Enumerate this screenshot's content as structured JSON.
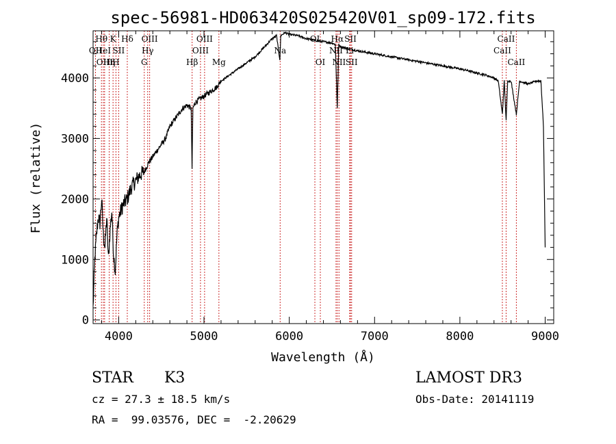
{
  "chart_data": {
    "type": "line",
    "title": "spec-56981-HD063420S025420V01_sp09-172.fits",
    "xlabel": "Wavelength (Å)",
    "ylabel": "Flux (relative)",
    "xlim": [
      3700,
      9100
    ],
    "ylim": [
      -60,
      4780
    ],
    "xticks": [
      4000,
      5000,
      6000,
      7000,
      8000,
      9000
    ],
    "yticks": [
      0,
      1000,
      2000,
      3000,
      4000
    ],
    "series": [
      {
        "name": "spectrum",
        "x": [
          3700,
          3720,
          3740,
          3760,
          3780,
          3800,
          3820,
          3840,
          3860,
          3880,
          3900,
          3920,
          3940,
          3960,
          3980,
          4000,
          4050,
          4100,
          4150,
          4200,
          4250,
          4300,
          4350,
          4400,
          4450,
          4500,
          4550,
          4600,
          4650,
          4700,
          4750,
          4800,
          4850,
          4860,
          4870,
          4900,
          4950,
          5000,
          5050,
          5100,
          5150,
          5200,
          5300,
          5400,
          5500,
          5600,
          5700,
          5800,
          5850,
          5890,
          5900,
          5950,
          6000,
          6100,
          6200,
          6300,
          6400,
          6500,
          6540,
          6563,
          6580,
          6600,
          6700,
          6800,
          7000,
          7200,
          7400,
          7600,
          7800,
          8000,
          8100,
          8200,
          8300,
          8400,
          8450,
          8498,
          8520,
          8542,
          8560,
          8600,
          8662,
          8700,
          8800,
          8900,
          8950,
          8980,
          9000
        ],
        "y": [
          200,
          1000,
          1400,
          1700,
          1600,
          2000,
          1400,
          1200,
          1700,
          1000,
          1500,
          1800,
          1100,
          800,
          1400,
          1700,
          1900,
          2000,
          2200,
          2300,
          2400,
          2450,
          2600,
          2700,
          2800,
          2900,
          3000,
          3200,
          3300,
          3400,
          3500,
          3550,
          3500,
          2500,
          3500,
          3600,
          3650,
          3700,
          3750,
          3800,
          3850,
          3950,
          4050,
          4150,
          4250,
          4350,
          4500,
          4650,
          4700,
          4300,
          4700,
          4750,
          4720,
          4700,
          4650,
          4620,
          4600,
          4580,
          4550,
          3500,
          4550,
          4520,
          4480,
          4450,
          4400,
          4350,
          4300,
          4250,
          4200,
          4150,
          4120,
          4080,
          4050,
          4000,
          3950,
          3400,
          3950,
          3300,
          3950,
          3950,
          3400,
          3950,
          3900,
          3950,
          3950,
          3200,
          1200
        ]
      }
    ],
    "spectral_lines": [
      {
        "x": 3728,
        "label": "OII",
        "row": 1
      },
      {
        "x": 3798,
        "label": "Hθ",
        "row": 0
      },
      {
        "x": 3820,
        "label": "HeI",
        "row": 1
      },
      {
        "x": 3835,
        "label": "OIII",
        "row": 2
      },
      {
        "x": 3889,
        "label": "Hη",
        "row": 2
      },
      {
        "x": 3934,
        "label": "K",
        "row": 0
      },
      {
        "x": 3968,
        "label": "H",
        "row": 2
      },
      {
        "x": 4000,
        "label": "SII",
        "row": 1
      },
      {
        "x": 4101,
        "label": "Hδ",
        "row": 0
      },
      {
        "x": 4300,
        "label": "G",
        "row": 2
      },
      {
        "x": 4340,
        "label": "Hγ",
        "row": 1
      },
      {
        "x": 4363,
        "label": "OIII",
        "row": 0
      },
      {
        "x": 4861,
        "label": "Hβ",
        "row": 2
      },
      {
        "x": 4959,
        "label": "OIII",
        "row": 1
      },
      {
        "x": 5007,
        "label": "OIII",
        "row": 0
      },
      {
        "x": 5175,
        "label": "Mg",
        "row": 2
      },
      {
        "x": 5893,
        "label": "Na",
        "row": 1
      },
      {
        "x": 6300,
        "label": "OI",
        "row": 0
      },
      {
        "x": 6364,
        "label": "OI",
        "row": 2
      },
      {
        "x": 6548,
        "label": "NII",
        "row": 1
      },
      {
        "x": 6563,
        "label": "Hα",
        "row": 0
      },
      {
        "x": 6583,
        "label": "NII",
        "row": 2
      },
      {
        "x": 6708,
        "label": "Li",
        "row": 1
      },
      {
        "x": 6717,
        "label": "SII",
        "row": 0
      },
      {
        "x": 6731,
        "label": "SII",
        "row": 2
      },
      {
        "x": 8498,
        "label": "CaII",
        "row": 1
      },
      {
        "x": 8542,
        "label": "CaII",
        "row": 0
      },
      {
        "x": 8662,
        "label": "CaII",
        "row": 2
      }
    ]
  },
  "info": {
    "object_class": "STAR",
    "subclass": "K3",
    "survey": "LAMOST DR3",
    "cz": "cz = 27.3 ± 18.5 km/s",
    "obs_date": "Obs-Date: 20141119",
    "coords": "RA =  99.03576, DEC =  -2.20629"
  },
  "colors": {
    "spectrum": "#000000",
    "line_marker": "#cc2a2a",
    "axis": "#000000"
  }
}
